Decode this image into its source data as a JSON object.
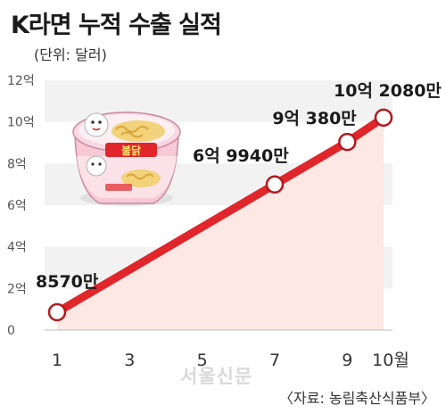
{
  "header": {
    "title": "K라면 누적 수출 실적",
    "unit": "(단위: 달러)"
  },
  "footer": {
    "source": "〈자료: 농림축산식품부〉",
    "watermark": "서울신문"
  },
  "colors": {
    "line": "#e0252b",
    "area": "#fde8e3",
    "band": "#f2f2f2",
    "marker_fill": "#ffffff",
    "marker_stroke": "#b01a1f"
  },
  "chart_data": {
    "type": "line",
    "title": "K라면 누적 수출 실적",
    "ylabel": "(단위: 달러)",
    "xlabel": "",
    "x": [
      1,
      3,
      5,
      7,
      9,
      10
    ],
    "x_tick_labels": [
      "1",
      "3",
      "5",
      "7",
      "9",
      "10월"
    ],
    "series": [
      {
        "values": [
          0.857,
          2.9,
          4.95,
          6.994,
          9.038,
          10.208
        ]
      }
    ],
    "markers": [
      {
        "x": 1,
        "y": 0.857,
        "label": "8570만"
      },
      {
        "x": 7,
        "y": 6.994,
        "label": "6억 9940만"
      },
      {
        "x": 9,
        "y": 9.038,
        "label": "9억 380만"
      },
      {
        "x": 10,
        "y": 10.208,
        "label": "10억 2080만"
      }
    ],
    "y_ticks": [
      0,
      2,
      4,
      6,
      8,
      10,
      12
    ],
    "y_tick_labels": [
      "0",
      "2억",
      "4억",
      "6억",
      "8억",
      "10억",
      "12억"
    ],
    "ylim": [
      0,
      12
    ],
    "xlim": [
      1,
      10
    ],
    "grid": "alternating horizontal bands",
    "legend": "none"
  },
  "illustration": {
    "name": "bowl-noodle-product-image",
    "brand_text": "불닭"
  }
}
